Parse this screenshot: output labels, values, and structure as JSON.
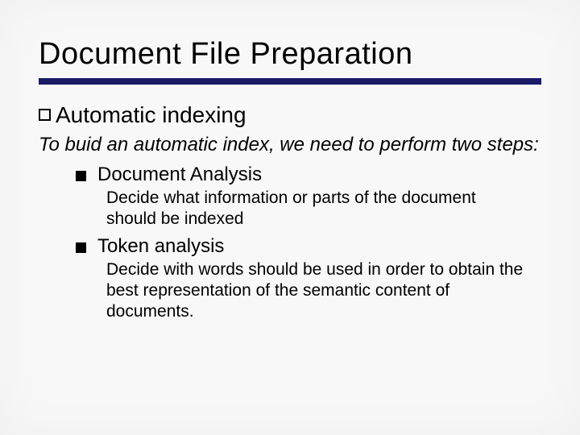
{
  "title": "Document File Preparation",
  "rule_color": "#1a1a66",
  "section": {
    "heading": "Automatic indexing",
    "intro": "To buid an automatic index, we need to perform two steps:",
    "items": [
      {
        "label": "Document Analysis",
        "desc": "Decide what information or parts of the document should be indexed"
      },
      {
        "label": "Token analysis",
        "desc": "Decide with words should be used in order to obtain the best representation of the semantic content of documents."
      }
    ]
  },
  "style": {
    "title_fontsize": 38,
    "level1_fontsize": 28,
    "intro_fontsize": 24,
    "level2_fontsize": 24,
    "level3_fontsize": 21,
    "text_color": "#000000",
    "background_color": "#ffffff"
  }
}
